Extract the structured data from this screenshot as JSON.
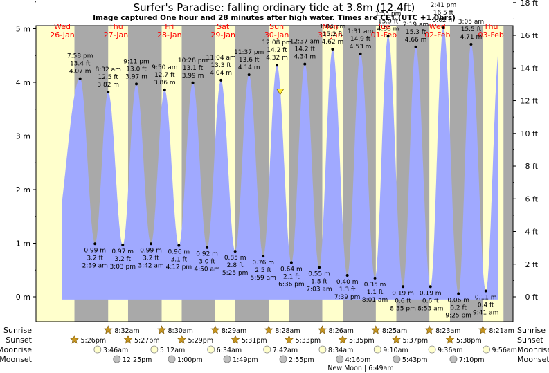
{
  "chart_data": {
    "type": "area",
    "title": "Surfer's Paradise: falling  ordinary tide at 3.8m (12.4ft)",
    "subtitle": "Image captured One hour and 28 minutes after high water. Times are CET (UTC +1.0hrs)",
    "ylim_m": [
      -0.45,
      5.85
    ],
    "ylim_ft": [
      -1.5,
      19.2
    ],
    "y_ticks_m": [
      {
        "value": 0,
        "label": "0 m"
      },
      {
        "value": 1,
        "label": "1 m"
      },
      {
        "value": 2,
        "label": "2 m"
      },
      {
        "value": 3,
        "label": "3 m"
      },
      {
        "value": 4,
        "label": "4 m"
      },
      {
        "value": 5,
        "label": "5 m"
      }
    ],
    "y_ticks_ft": [
      {
        "value": 0,
        "label": "0 ft"
      },
      {
        "value": 2,
        "label": "2 ft"
      },
      {
        "value": 4,
        "label": "4 ft"
      },
      {
        "value": 6,
        "label": "6 ft"
      },
      {
        "value": 8,
        "label": "8 ft"
      },
      {
        "value": 10,
        "label": "10 ft"
      },
      {
        "value": 12,
        "label": "12 ft"
      },
      {
        "value": 14,
        "label": "14 ft"
      },
      {
        "value": 16,
        "label": "16 ft"
      },
      {
        "value": 18,
        "label": "18 ft"
      }
    ],
    "days": [
      {
        "weekday": "Wed",
        "date": "26-Jan"
      },
      {
        "weekday": "Thu",
        "date": "27-Jan"
      },
      {
        "weekday": "Fri",
        "date": "28-Jan"
      },
      {
        "weekday": "Sat",
        "date": "29-Jan"
      },
      {
        "weekday": "Sun",
        "date": "30-Jan"
      },
      {
        "weekday": "Mon",
        "date": "31-Jan"
      },
      {
        "weekday": "Tue",
        "date": "01-Feb"
      },
      {
        "weekday": "Wed",
        "date": "02-Feb"
      },
      {
        "weekday": "Thu",
        "date": "03-Feb"
      }
    ],
    "tides": [
      {
        "type": "high",
        "time": "7:58 pm",
        "ft": "13.4 ft",
        "m": "4.07 m",
        "value": 4.07
      },
      {
        "type": "low",
        "time": "2:39 am",
        "ft": "3.2 ft",
        "m": "0.99 m",
        "value": 0.99
      },
      {
        "type": "high",
        "time": "8:32 am",
        "ft": "12.5 ft",
        "m": "3.82 m",
        "value": 3.82
      },
      {
        "type": "low",
        "time": "3:03 pm",
        "ft": "3.2 ft",
        "m": "0.97 m",
        "value": 0.97
      },
      {
        "type": "high",
        "time": "9:11 pm",
        "ft": "13.0 ft",
        "m": "3.97 m",
        "value": 3.97
      },
      {
        "type": "low",
        "time": "3:42 am",
        "ft": "3.2 ft",
        "m": "0.99 m",
        "value": 0.99
      },
      {
        "type": "high",
        "time": "9:50 am",
        "ft": "12.7 ft",
        "m": "3.86 m",
        "value": 3.86
      },
      {
        "type": "low",
        "time": "4:12 pm",
        "ft": "3.1 ft",
        "m": "0.96 m",
        "value": 0.96
      },
      {
        "type": "high",
        "time": "10:28 pm",
        "ft": "13.1 ft",
        "m": "3.99 m",
        "value": 3.99
      },
      {
        "type": "low",
        "time": "4:50 am",
        "ft": "3.0 ft",
        "m": "0.92 m",
        "value": 0.92
      },
      {
        "type": "high",
        "time": "11:04 am",
        "ft": "13.3 ft",
        "m": "4.04 m",
        "value": 4.04
      },
      {
        "type": "low",
        "time": "5:25 pm",
        "ft": "2.8 ft",
        "m": "0.85 m",
        "value": 0.85
      },
      {
        "type": "high",
        "time": "11:37 pm",
        "ft": "13.6 ft",
        "m": "4.14 m",
        "value": 4.14
      },
      {
        "type": "low",
        "time": "5:59 am",
        "ft": "2.5 ft",
        "m": "0.76 m",
        "value": 0.76
      },
      {
        "type": "high",
        "time": "12:08 pm",
        "ft": "14.2 ft",
        "m": "4.32 m",
        "value": 4.32
      },
      {
        "type": "low",
        "time": "6:36 pm",
        "ft": "2.1 ft",
        "m": "0.64 m",
        "value": 0.64
      },
      {
        "type": "high",
        "time": "12:37 am",
        "ft": "14.2 ft",
        "m": "4.34 m",
        "value": 4.34
      },
      {
        "type": "low",
        "time": "7:03 am",
        "ft": "1.8 ft",
        "m": "0.55 m",
        "value": 0.55
      },
      {
        "type": "high",
        "time": "1:04 pm",
        "ft": "15.2 ft",
        "m": "4.62 m",
        "value": 4.62
      },
      {
        "type": "low",
        "time": "7:39 pm",
        "ft": "1.3 ft",
        "m": "0.40 m",
        "value": 0.4
      },
      {
        "type": "high",
        "time": "1:31 am",
        "ft": "14.9 ft",
        "m": "4.53 m",
        "value": 4.53
      },
      {
        "type": "low",
        "time": "8:01 am",
        "ft": "1.1 ft",
        "m": "0.35 m",
        "value": 0.35
      },
      {
        "type": "high",
        "time": "1:55 pm",
        "ft": "15.9 ft",
        "m": "4.86 m",
        "value": 4.86
      },
      {
        "type": "low",
        "time": "8:35 pm",
        "ft": "0.6 ft",
        "m": "0.19 m",
        "value": 0.19
      },
      {
        "type": "high",
        "time": "2:19 am",
        "ft": "15.3 ft",
        "m": "4.66 m",
        "value": 4.66
      },
      {
        "type": "low",
        "time": "8:53 am",
        "ft": "0.6 ft",
        "m": "0.19 m",
        "value": 0.19
      },
      {
        "type": "high",
        "time": "2:41 pm",
        "ft": "16.5 ft",
        "m": "5.02 m",
        "value": 5.02
      },
      {
        "type": "low",
        "time": "9:25 pm",
        "ft": "0.2 ft",
        "m": "0.06 m",
        "value": 0.06
      },
      {
        "type": "high",
        "time": "3:05 am",
        "ft": "15.5 ft",
        "m": "4.71 m",
        "value": 4.71
      },
      {
        "type": "low",
        "time": "9:41 am",
        "ft": "0.4 ft",
        "m": "0.11 m",
        "value": 0.11
      }
    ],
    "current_level_m": 3.8,
    "row_labels": [
      "Sunrise",
      "Sunset",
      "Moonrise",
      "Moonset"
    ],
    "sunrise": [
      "8:32am",
      "8:30am",
      "8:29am",
      "8:28am",
      "8:26am",
      "8:25am",
      "8:23am",
      "8:21am"
    ],
    "sunset": [
      "5:26pm",
      "5:27pm",
      "5:29pm",
      "5:31pm",
      "5:33pm",
      "5:35pm",
      "5:37pm",
      "5:38pm"
    ],
    "moonrise": [
      "3:46am",
      "5:12am",
      "6:34am",
      "7:42am",
      "8:34am",
      "9:10am",
      "9:36am",
      "9:56am"
    ],
    "moonset": [
      "12:25pm",
      "1:00pm",
      "1:49pm",
      "2:55pm",
      "4:16pm",
      "5:43pm",
      "7:10pm"
    ],
    "note": "New Moon | 6:49am",
    "colors": {
      "day_bg": "#ffffcc",
      "night_bg": "#a9a9a9",
      "water": "#a0a9ff",
      "day_label": "#ff0000",
      "star": "#c8961e",
      "moon_rise": "#ffffcc",
      "moon_set": "#c0c0c0"
    }
  }
}
